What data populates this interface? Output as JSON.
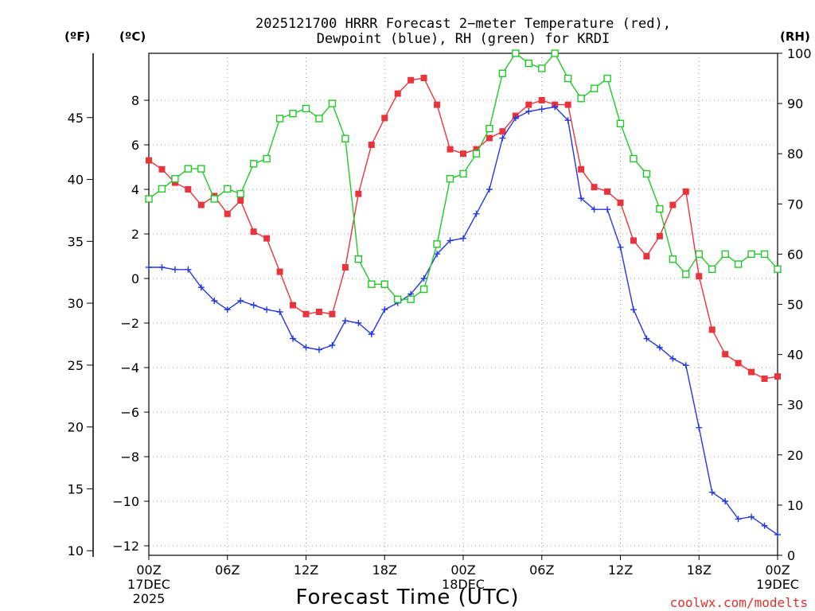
{
  "chart_data": {
    "type": "line",
    "title_lines": [
      "2025121700 HRRR Forecast 2−meter Temperature (red),",
      "Dewpoint (blue), RH (green) for KRDI"
    ],
    "units": {
      "fahrenheit": "(ºF)",
      "celsius": "(ºC)",
      "rh": "(RH)"
    },
    "xlabel": "Forecast Time (UTC)",
    "credit": "coolwx.com/modelts",
    "hours_range": [
      0,
      48
    ],
    "x_ticks": [
      {
        "hour": 0,
        "lines": [
          "00Z",
          "17DEC",
          "2025"
        ]
      },
      {
        "hour": 6,
        "lines": [
          "06Z"
        ]
      },
      {
        "hour": 12,
        "lines": [
          "12Z"
        ]
      },
      {
        "hour": 18,
        "lines": [
          "18Z"
        ]
      },
      {
        "hour": 24,
        "lines": [
          "00Z",
          "18DEC"
        ]
      },
      {
        "hour": 30,
        "lines": [
          "06Z"
        ]
      },
      {
        "hour": 36,
        "lines": [
          "12Z"
        ]
      },
      {
        "hour": 42,
        "lines": [
          "18Z"
        ]
      },
      {
        "hour": 48,
        "lines": [
          "00Z",
          "19DEC"
        ]
      }
    ],
    "celsius_axis": {
      "range": [
        -12.5,
        10
      ],
      "ticks": [
        8,
        6,
        4,
        2,
        0,
        -2,
        -4,
        -6,
        -8,
        -10,
        -12
      ],
      "labels": [
        "8",
        "6",
        "4",
        "2",
        "0",
        "−2",
        "−4",
        "−6",
        "−8",
        "−10",
        "−12"
      ]
    },
    "fahrenheit_axis": {
      "ticks": [
        45,
        40,
        35,
        30,
        25,
        20,
        15,
        10
      ],
      "labels": [
        "45",
        "40",
        "35",
        "30",
        "25",
        "20",
        "15",
        "10"
      ]
    },
    "rh_axis": {
      "range": [
        0,
        100
      ],
      "ticks": [
        100,
        90,
        80,
        70,
        60,
        50,
        40,
        30,
        20,
        10,
        0
      ],
      "labels": [
        "100",
        "90",
        "80",
        "70",
        "60",
        "50",
        "40",
        "30",
        "20",
        "10",
        "0"
      ]
    },
    "series": [
      {
        "name": "Temperature",
        "unit": "C",
        "color": "#e8343a",
        "marker": "filled-square",
        "values": [
          5.3,
          4.9,
          4.3,
          4.0,
          3.3,
          3.7,
          2.9,
          3.5,
          2.1,
          1.8,
          0.3,
          -1.2,
          -1.6,
          -1.5,
          -1.6,
          0.5,
          3.8,
          6.0,
          7.2,
          8.3,
          8.9,
          9.0,
          7.8,
          5.8,
          5.6,
          5.8,
          6.3,
          6.6,
          7.3,
          7.8,
          8.0,
          7.8,
          7.8,
          4.9,
          4.1,
          3.9,
          3.4,
          1.7,
          1.0,
          1.9,
          3.3,
          3.9,
          0.1,
          -2.3,
          -3.4,
          -3.8,
          -4.2,
          -4.5,
          -4.4
        ]
      },
      {
        "name": "Dewpoint",
        "unit": "C",
        "color": "#2438e0",
        "marker": "plus",
        "values": [
          0.5,
          0.5,
          0.4,
          0.4,
          -0.4,
          -1.0,
          -1.4,
          -1.0,
          -1.2,
          -1.4,
          -1.5,
          -2.7,
          -3.1,
          -3.2,
          -3.0,
          -1.9,
          -2.0,
          -2.5,
          -1.4,
          -1.1,
          -0.7,
          0.0,
          1.1,
          1.7,
          1.8,
          2.9,
          4.0,
          6.3,
          7.2,
          7.5,
          7.6,
          7.7,
          7.1,
          3.6,
          3.1,
          3.1,
          1.4,
          -1.4,
          -2.7,
          -3.1,
          -3.6,
          -3.9,
          -6.7,
          -9.6,
          -10.0,
          -10.8,
          -10.7,
          -11.1,
          -11.5
        ]
      },
      {
        "name": "RH",
        "unit": "%",
        "color": "#22c828",
        "marker": "open-square",
        "values": [
          71,
          73,
          75,
          77,
          77,
          71,
          73,
          72,
          78,
          79,
          87,
          88,
          89,
          87,
          90,
          83,
          59,
          54,
          54,
          51,
          51,
          53,
          62,
          75,
          76,
          80,
          85,
          96,
          100,
          98,
          97,
          100,
          95,
          91,
          93,
          95,
          86,
          79,
          76,
          69,
          59,
          56,
          60,
          57,
          60,
          58,
          60,
          60,
          57
        ]
      }
    ]
  }
}
